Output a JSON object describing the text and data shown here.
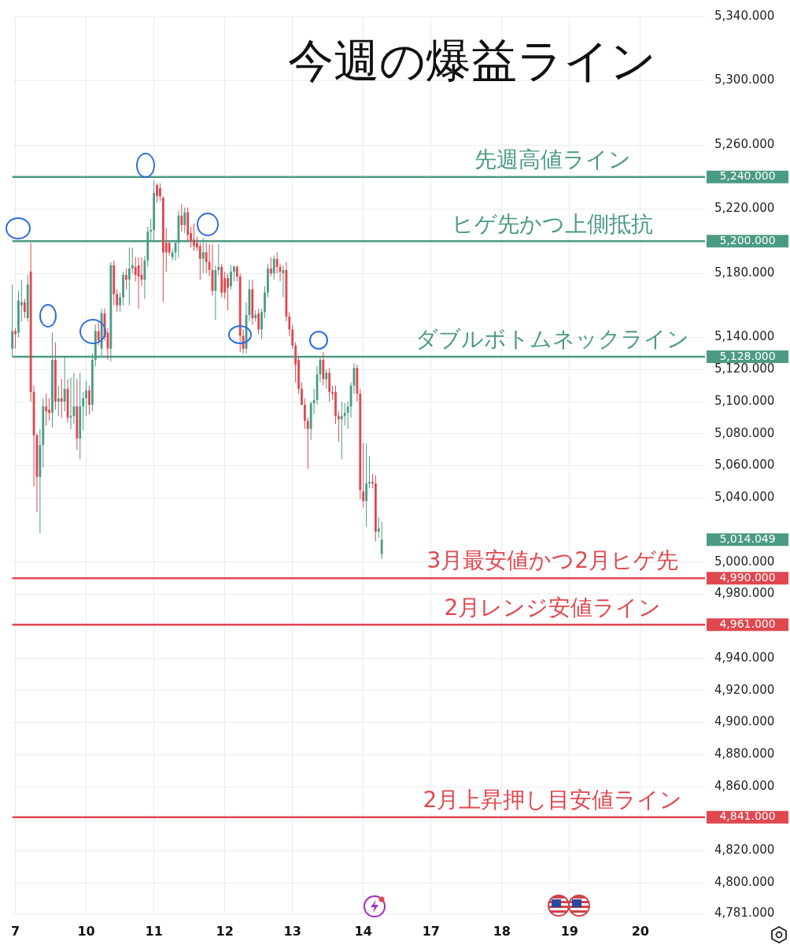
{
  "chart_data": {
    "type": "candlestick",
    "title": "今週の爆益ライン",
    "categories": [
      null,
      "7",
      null,
      null,
      null,
      null,
      null,
      null,
      null,
      null,
      null,
      null,
      null,
      null,
      null,
      null,
      null,
      null,
      null,
      null,
      null,
      null,
      null,
      null,
      "10",
      null,
      null,
      null,
      null,
      null,
      null,
      null,
      null,
      null,
      null,
      null,
      null,
      null,
      null,
      null,
      null,
      null,
      null,
      null,
      null,
      null,
      "11",
      null,
      null,
      null,
      null,
      null,
      null,
      null,
      null,
      null,
      null,
      null,
      null,
      null,
      null,
      null,
      null,
      null,
      null,
      null,
      null,
      null,
      null,
      "12",
      null,
      null,
      null,
      null,
      null,
      null,
      null,
      null,
      null,
      null,
      null,
      null,
      null,
      null,
      null,
      null,
      null,
      null,
      null,
      null,
      null,
      "13",
      null,
      null,
      null,
      null,
      null,
      null,
      null,
      null,
      null,
      null,
      null,
      null,
      null,
      null,
      null,
      null,
      null,
      null,
      null,
      null,
      null,
      null,
      "14",
      null,
      null,
      null,
      null,
      null,
      null,
      null,
      null,
      null,
      null,
      null,
      null,
      null,
      null,
      null,
      null,
      null,
      null,
      null,
      null,
      null,
      "17",
      null,
      null,
      null,
      null,
      null,
      null,
      null,
      null,
      null,
      null,
      null,
      null,
      null,
      null,
      null,
      null,
      null,
      null,
      null,
      null,
      null,
      null,
      "18",
      null,
      null,
      null,
      null,
      null,
      null,
      null,
      null,
      null,
      null,
      null,
      null,
      null,
      null,
      null,
      null,
      null,
      null,
      null,
      null,
      null,
      "19",
      null,
      null,
      null,
      null,
      null,
      null,
      null,
      null,
      null,
      null,
      null,
      null,
      null,
      null,
      null,
      null,
      null,
      null,
      null,
      null,
      null,
      null,
      "20",
      null,
      null,
      null,
      null,
      null,
      null,
      null,
      null,
      null,
      null,
      null,
      null,
      null,
      null,
      null,
      null,
      null,
      null,
      null,
      null,
      null
    ],
    "ohlc": [
      [
        5133,
        5173,
        5128,
        5144
      ],
      [
        5144,
        5146,
        5133,
        5142
      ],
      [
        5143,
        5169,
        5140,
        5163
      ],
      [
        5160,
        5176,
        5150,
        5162
      ],
      [
        5162,
        5164,
        5152,
        5156
      ],
      [
        5152,
        5179,
        5150,
        5173
      ],
      [
        5181,
        5199,
        5100,
        5106
      ],
      [
        5106,
        5110,
        5047,
        5079
      ],
      [
        5079,
        5080,
        5031,
        5053
      ],
      [
        5053,
        5083,
        5018,
        5073
      ],
      [
        5073,
        5102,
        5059,
        5097
      ],
      [
        5097,
        5105,
        5085,
        5094
      ],
      [
        5095,
        5102,
        5088,
        5093
      ],
      [
        5093,
        5143,
        5084,
        5126
      ],
      [
        5126,
        5137,
        5095,
        5100
      ],
      [
        5100,
        5110,
        5091,
        5102
      ],
      [
        5102,
        5114,
        5090,
        5100
      ],
      [
        5100,
        5128,
        5094,
        5108
      ],
      [
        5108,
        5114,
        5087,
        5090
      ],
      [
        5090,
        5115,
        5083,
        5091
      ],
      [
        5091,
        5118,
        5086,
        5097
      ],
      [
        5097,
        5114,
        5070,
        5077
      ],
      [
        5077,
        5118,
        5064,
        5097
      ],
      [
        5097,
        5106,
        5082,
        5102
      ],
      [
        5102,
        5113,
        5091,
        5107
      ],
      [
        5107,
        5110,
        5092,
        5098
      ],
      [
        5098,
        5130,
        5094,
        5126
      ],
      [
        5126,
        5148,
        5122,
        5144
      ],
      [
        5144,
        5150,
        5135,
        5138
      ],
      [
        5133,
        5158,
        5128,
        5155
      ],
      [
        5155,
        5158,
        5138,
        5140
      ],
      [
        5143,
        5146,
        5126,
        5133
      ],
      [
        5133,
        5187,
        5125,
        5185
      ],
      [
        5185,
        5188,
        5160,
        5167
      ],
      [
        5167,
        5170,
        5156,
        5160
      ],
      [
        5160,
        5168,
        5156,
        5165
      ],
      [
        5165,
        5181,
        5160,
        5179
      ],
      [
        5179,
        5183,
        5170,
        5176
      ],
      [
        5176,
        5196,
        5160,
        5183
      ],
      [
        5183,
        5196,
        5180,
        5185
      ],
      [
        5184,
        5190,
        5175,
        5179
      ],
      [
        5185,
        5190,
        5158,
        5178
      ],
      [
        5179,
        5190,
        5172,
        5176
      ],
      [
        5176,
        5191,
        5164,
        5188
      ],
      [
        5188,
        5209,
        5184,
        5206
      ],
      [
        5206,
        5214,
        5200,
        5207
      ],
      [
        5207,
        5238,
        5200,
        5230
      ],
      [
        5235,
        5236,
        5224,
        5228
      ],
      [
        5233,
        5236,
        5225,
        5228
      ],
      [
        5227,
        5228,
        5162,
        5193
      ],
      [
        5199,
        5208,
        5181,
        5193
      ],
      [
        5199,
        5199,
        5191,
        5193
      ],
      [
        5190,
        5195,
        5188,
        5193
      ],
      [
        5193,
        5199,
        5188,
        5199
      ],
      [
        5199,
        5219,
        5190,
        5216
      ],
      [
        5216,
        5223,
        5206,
        5210
      ],
      [
        5210,
        5221,
        5205,
        5218
      ],
      [
        5218,
        5221,
        5200,
        5204
      ],
      [
        5205,
        5209,
        5196,
        5200
      ],
      [
        5201,
        5211,
        5194,
        5197
      ],
      [
        5199,
        5203,
        5194,
        5196
      ],
      [
        5197,
        5199,
        5176,
        5189
      ],
      [
        5189,
        5202,
        5180,
        5193
      ],
      [
        5193,
        5199,
        5180,
        5187
      ],
      [
        5187,
        5198,
        5178,
        5182
      ],
      [
        5182,
        5198,
        5166,
        5169
      ],
      [
        5169,
        5185,
        5151,
        5182
      ],
      [
        5182,
        5198,
        5179,
        5184
      ],
      [
        5184,
        5186,
        5165,
        5168
      ],
      [
        5177,
        5181,
        5164,
        5168
      ],
      [
        5177,
        5180,
        5157,
        5171
      ],
      [
        5172,
        5185,
        5170,
        5181
      ],
      [
        5181,
        5185,
        5175,
        5184
      ],
      [
        5184,
        5185,
        5175,
        5178
      ],
      [
        5178,
        5180,
        5131,
        5141
      ],
      [
        5141,
        5145,
        5130,
        5133
      ],
      [
        5133,
        5162,
        5130,
        5154
      ],
      [
        5154,
        5176,
        5150,
        5170
      ],
      [
        5170,
        5176,
        5148,
        5152
      ],
      [
        5152,
        5157,
        5150,
        5154
      ],
      [
        5155,
        5158,
        5142,
        5145
      ],
      [
        5145,
        5158,
        5139,
        5156
      ],
      [
        5156,
        5172,
        5152,
        5168
      ],
      [
        5168,
        5186,
        5165,
        5183
      ],
      [
        5183,
        5190,
        5178,
        5180
      ],
      [
        5180,
        5191,
        5176,
        5189
      ],
      [
        5189,
        5193,
        5180,
        5184
      ],
      [
        5184,
        5186,
        5175,
        5181
      ],
      [
        5180,
        5185,
        5165,
        5182
      ],
      [
        5182,
        5187,
        5150,
        5153
      ],
      [
        5153,
        5156,
        5141,
        5145
      ],
      [
        5145,
        5148,
        5133,
        5135
      ],
      [
        5135,
        5137,
        5112,
        5123
      ],
      [
        5126,
        5128,
        5105,
        5108
      ],
      [
        5108,
        5112,
        5098,
        5098
      ],
      [
        5098,
        5102,
        5083,
        5088
      ],
      [
        5088,
        5090,
        5058,
        5083
      ],
      [
        5083,
        5100,
        5076,
        5099
      ],
      [
        5099,
        5108,
        5092,
        5101
      ],
      [
        5101,
        5122,
        5098,
        5117
      ],
      [
        5117,
        5128,
        5112,
        5126
      ],
      [
        5126,
        5131,
        5110,
        5114
      ],
      [
        5114,
        5120,
        5108,
        5118
      ],
      [
        5118,
        5121,
        5100,
        5106
      ],
      [
        5106,
        5110,
        5101,
        5105
      ],
      [
        5106,
        5110,
        5086,
        5091
      ],
      [
        5091,
        5094,
        5075,
        5089
      ],
      [
        5089,
        5100,
        5064,
        5091
      ],
      [
        5091,
        5099,
        5085,
        5093
      ],
      [
        5093,
        5100,
        5083,
        5097
      ],
      [
        5097,
        5112,
        5090,
        5110
      ],
      [
        5110,
        5124,
        5105,
        5121
      ],
      [
        5121,
        5123,
        5100,
        5105
      ],
      [
        5105,
        5108,
        5039,
        5045
      ],
      [
        5044,
        5074,
        5034,
        5038
      ],
      [
        5038,
        5074,
        5022,
        5049
      ],
      [
        5049,
        5066,
        5046,
        5050
      ],
      [
        5050,
        5055,
        5046,
        5049
      ],
      [
        5049,
        5054,
        5013,
        5019
      ],
      [
        5019,
        5028,
        5015,
        5021
      ],
      [
        5005,
        5025,
        5002,
        5014.049
      ],
      null,
      null,
      null,
      null,
      null,
      null,
      null,
      null,
      null,
      null,
      null,
      null,
      null,
      null,
      null,
      null,
      null,
      null,
      null,
      null,
      null,
      null,
      null,
      null,
      null,
      null,
      null,
      null,
      null,
      null,
      null,
      null,
      null,
      null,
      null,
      null,
      null,
      null,
      null,
      null,
      null,
      null,
      null,
      null,
      null,
      null,
      null,
      null,
      null,
      null,
      null,
      null,
      null,
      null,
      null,
      null,
      null,
      null,
      null,
      null,
      null,
      null,
      null,
      null,
      null,
      null,
      null,
      null,
      null,
      null,
      null,
      null,
      null,
      null,
      null,
      null,
      null,
      null,
      null,
      null,
      null,
      null,
      null,
      null,
      null,
      null,
      null,
      null,
      null,
      null,
      null,
      null,
      null,
      null,
      null,
      null,
      null,
      null,
      null,
      null,
      null,
      null,
      null,
      null,
      null
    ],
    "colors": [
      "#4b9b84",
      "#e0474f",
      "#4b9b84",
      "#4b9b84",
      "#e0474f",
      "#4b9b84",
      "#e0474f",
      "#e0474f",
      "#e0474f",
      "#4b9b84",
      "#4b9b84",
      "#e0474f",
      "#e0474f",
      "#4b9b84",
      "#e0474f",
      "#4b9b84",
      "#e0474f",
      "#4b9b84",
      "#e0474f",
      "#4b9b84",
      "#4b9b84",
      "#e0474f",
      "#4b9b84",
      "#4b9b84",
      "#4b9b84",
      "#e0474f",
      "#4b9b84",
      "#4b9b84",
      "#e0474f",
      "#4b9b84",
      "#e0474f",
      "#e0474f",
      "#4b9b84",
      "#e0474f",
      "#e0474f",
      "#4b9b84",
      "#4b9b84",
      "#e0474f",
      "#4b9b84",
      "#4b9b84",
      "#e0474f",
      "#e0474f",
      "#e0474f",
      "#4b9b84",
      "#4b9b84",
      "#4b9b84",
      "#4b9b84",
      "#e0474f",
      "#e0474f",
      "#e0474f",
      "#e0474f",
      "#e0474f",
      "#4b9b84",
      "#4b9b84",
      "#4b9b84",
      "#e0474f",
      "#4b9b84",
      "#e0474f",
      "#e0474f",
      "#e0474f",
      "#e0474f",
      "#e0474f",
      "#4b9b84",
      "#e0474f",
      "#e0474f",
      "#e0474f",
      "#4b9b84",
      "#4b9b84",
      "#e0474f",
      "#e0474f",
      "#e0474f",
      "#4b9b84",
      "#4b9b84",
      "#e0474f",
      "#e0474f",
      "#e0474f",
      "#4b9b84",
      "#4b9b84",
      "#e0474f",
      "#4b9b84",
      "#e0474f",
      "#4b9b84",
      "#4b9b84",
      "#4b9b84",
      "#e0474f",
      "#4b9b84",
      "#e0474f",
      "#e0474f",
      "#4b9b84",
      "#e0474f",
      "#e0474f",
      "#e0474f",
      "#e0474f",
      "#e0474f",
      "#e0474f",
      "#e0474f",
      "#e0474f",
      "#4b9b84",
      "#4b9b84",
      "#4b9b84",
      "#4b9b84",
      "#e0474f",
      "#4b9b84",
      "#e0474f",
      "#e0474f",
      "#e0474f",
      "#e0474f",
      "#4b9b84",
      "#4b9b84",
      "#4b9b84",
      "#4b9b84",
      "#4b9b84",
      "#e0474f",
      "#e0474f",
      "#e0474f",
      "#4b9b84",
      "#4b9b84",
      "#e0474f",
      "#e0474f",
      "#4b9b84",
      "#4b9b84",
      null,
      null,
      null,
      null,
      null,
      null,
      null,
      null,
      null,
      null,
      null,
      null,
      null,
      null,
      null,
      null,
      null,
      null,
      null,
      null,
      null,
      null,
      null,
      null,
      null,
      null,
      null,
      null,
      null,
      null,
      null,
      null,
      null,
      null,
      null,
      null,
      null,
      null,
      null,
      null,
      null,
      null,
      null,
      null,
      null,
      null,
      null,
      null,
      null,
      null,
      null,
      null,
      null,
      null,
      null,
      null,
      null,
      null,
      null,
      null,
      null,
      null,
      null,
      null,
      null,
      null,
      null,
      null,
      null,
      null,
      null,
      null,
      null,
      null,
      null,
      null,
      null,
      null,
      null,
      null,
      null,
      null,
      null,
      null,
      null,
      null,
      null,
      null,
      null,
      null,
      null,
      null,
      null,
      null,
      null,
      null,
      null,
      null,
      null,
      null,
      null,
      null,
      null,
      null,
      null
    ],
    "annotations": [
      "5,240.000",
      "5,200.000",
      "5,128.000",
      "5,014.049",
      "4,990.000",
      "4,961.000",
      "4,841.000"
    ],
    "ylim": [
      4781,
      5340
    ],
    "yticks": [
      {
        "value": 5340,
        "label": "5,340.000"
      },
      {
        "value": 5300,
        "label": "5,300.000"
      },
      {
        "value": 5260,
        "label": "5,260.000"
      },
      {
        "value": 5220,
        "label": "5,220.000"
      },
      {
        "value": 5180,
        "label": "5,180.000"
      },
      {
        "value": 5140,
        "label": "5,140.000"
      },
      {
        "value": 5120,
        "label": "5,120.000"
      },
      {
        "value": 5100,
        "label": "5,100.000"
      },
      {
        "value": 5080,
        "label": "5,080.000"
      },
      {
        "value": 5060,
        "label": "5,060.000"
      },
      {
        "value": 5040,
        "label": "5,040.000"
      },
      {
        "value": 5000,
        "label": "5,000.000"
      },
      {
        "value": 4980,
        "label": "4,980.000"
      },
      {
        "value": 4940,
        "label": "4,940.000"
      },
      {
        "value": 4920,
        "label": "4,920.000"
      },
      {
        "value": 4900,
        "label": "4,900.000"
      },
      {
        "value": 4880,
        "label": "4,880.000"
      },
      {
        "value": 4860,
        "label": "4,860.000"
      },
      {
        "value": 4820,
        "label": "4,820.000"
      },
      {
        "value": 4800,
        "label": "4,800.000"
      },
      {
        "value": 4781,
        "label": "4,781.000"
      }
    ],
    "grid": true,
    "ref_lines": [
      {
        "axis": "y",
        "value": 5240,
        "label": "先週高値ライン",
        "color": "#4b9b84"
      },
      {
        "axis": "y",
        "value": 5200,
        "label": "ヒゲ先かつ上側抵抗",
        "color": "#4b9b84"
      },
      {
        "axis": "y",
        "value": 5128,
        "label": "ダブルボトムネックライン",
        "color": "#4b9b84"
      },
      {
        "axis": "y",
        "value": 4990,
        "label": "3月最安値かつ2月ヒゲ先",
        "color": "#e0474f"
      },
      {
        "axis": "y",
        "value": 4961,
        "label": "2月レンジ安値ライン",
        "color": "#e0474f"
      },
      {
        "axis": "y",
        "value": 4841,
        "label": "2月上昇押し目安値ライン",
        "color": "#e0474f"
      }
    ]
  }
}
